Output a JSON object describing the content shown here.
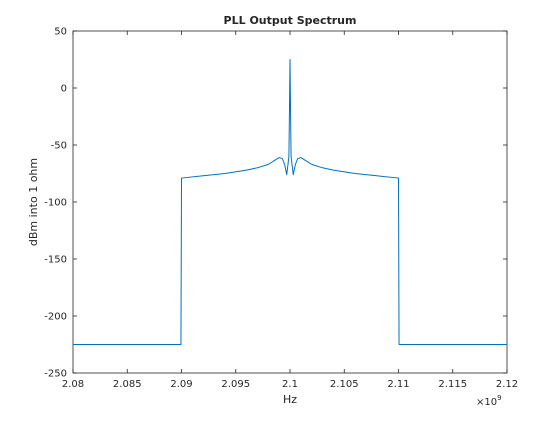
{
  "chart_data": {
    "type": "line",
    "title": "PLL Output Spectrum",
    "xlabel": "Hz",
    "ylabel": "dBm into 1 ohm",
    "x_scale_label": "×10",
    "x_scale_exponent": "9",
    "xlim": [
      2.08,
      2.12
    ],
    "ylim": [
      -250,
      50
    ],
    "xticks": [
      "2.08",
      "2.085",
      "2.09",
      "2.095",
      "2.1",
      "2.105",
      "2.11",
      "2.115",
      "2.12"
    ],
    "yticks": [
      "50",
      "0",
      "-50",
      "-100",
      "-150",
      "-200",
      "-250"
    ],
    "grid": false,
    "line_color": "#0072BD",
    "series": [
      {
        "x": [
          2.08,
          2.08995,
          2.09,
          2.092,
          2.094,
          2.096,
          2.097,
          2.098,
          2.0985,
          2.099,
          2.0993,
          2.0995,
          2.0997,
          2.0999,
          2.09995,
          2.1,
          2.10005,
          2.1001,
          2.1003,
          2.1005,
          2.1007,
          2.101,
          2.1015,
          2.102,
          2.103,
          2.104,
          2.106,
          2.108,
          2.11,
          2.11005,
          2.12
        ],
        "y": [
          -225,
          -225,
          -79,
          -77,
          -75,
          -72,
          -70,
          -67,
          -64,
          -61,
          -62,
          -67,
          -76,
          -60,
          -20,
          25,
          -20,
          -60,
          -76,
          -67,
          -62,
          -61,
          -64,
          -67,
          -70,
          -72,
          -75,
          -77,
          -79,
          -225,
          -225
        ]
      }
    ]
  }
}
